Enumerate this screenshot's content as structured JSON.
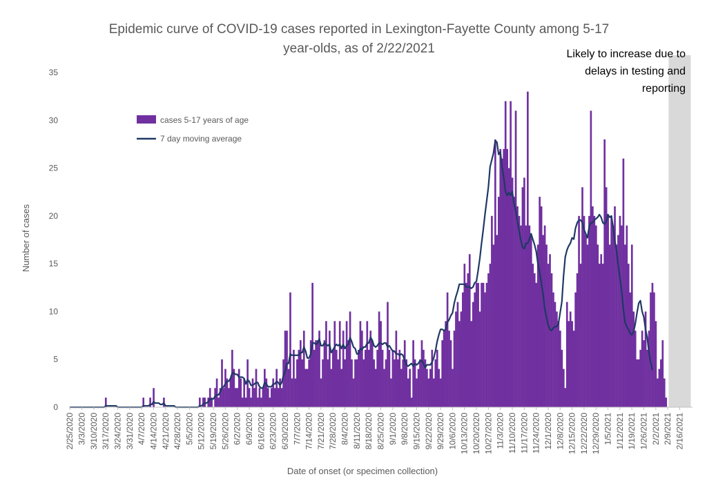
{
  "chart_data": {
    "type": "bar",
    "title_lines": [
      "Epidemic curve of COVID-19 cases reported in Lexington-Fayette County among 5-17",
      "year-olds, as of 2/22/2021"
    ],
    "xlabel": "Date of onset (or specimen collection)",
    "ylabel": "Number of cases",
    "ylim": [
      0,
      35
    ],
    "yticks": [
      0,
      5,
      10,
      15,
      20,
      25,
      30,
      35
    ],
    "grid": false,
    "legend_position": "top-left",
    "start_date": "2/25/2020",
    "end_date": "2/23/2021",
    "xtick_labels": [
      "2/25/2020",
      "3/3/2020",
      "3/10/2020",
      "3/17/2020",
      "3/24/2020",
      "3/31/2020",
      "4/7/2020",
      "4/14/2020",
      "4/21/2020",
      "4/28/2020",
      "5/5/2020",
      "5/12/2020",
      "5/19/2020",
      "5/26/2020",
      "6/2/2020",
      "6/9/2020",
      "6/16/2020",
      "6/23/2020",
      "6/30/2020",
      "7/7/2020",
      "7/14/2020",
      "7/21/2020",
      "7/28/2020",
      "8/4/2020",
      "8/11/2020",
      "8/18/2020",
      "8/25/2020",
      "9/1/2020",
      "9/8/2020",
      "9/15/2020",
      "9/22/2020",
      "9/29/2020",
      "10/6/2020",
      "10/13/2020",
      "10/20/2020",
      "10/27/2020",
      "11/3/2020",
      "11/10/2020",
      "11/17/2020",
      "11/24/2020",
      "12/1/2020",
      "12/8/2020",
      "12/15/2020",
      "12/22/2020",
      "12/29/2020",
      "1/5/2021",
      "1/12/2021",
      "1/19/2021",
      "1/26/2021",
      "2/2/2021",
      "2/9/2021",
      "2/16/2021"
    ],
    "series": [
      {
        "name": "cases 5-17 years of age",
        "type": "bar",
        "color": "#7030a0",
        "values": [
          0,
          0,
          0,
          0,
          0,
          0,
          0,
          0,
          0,
          0,
          0,
          0,
          0,
          0,
          0,
          0,
          0,
          0,
          0,
          0,
          0,
          1,
          0,
          0,
          0,
          0,
          0,
          0,
          0,
          0,
          0,
          0,
          0,
          0,
          0,
          0,
          0,
          0,
          0,
          0,
          0,
          0,
          0,
          1,
          0,
          0,
          0,
          1,
          0,
          2,
          0,
          0,
          0,
          0,
          0,
          1,
          0,
          0,
          0,
          0,
          0,
          0,
          0,
          0,
          0,
          0,
          0,
          0,
          0,
          0,
          0,
          0,
          0,
          0,
          0,
          0,
          1,
          0,
          1,
          1,
          0,
          1,
          2,
          1,
          0,
          2,
          3,
          1,
          2,
          5,
          2,
          4,
          3,
          2,
          3,
          6,
          4,
          2,
          2,
          4,
          3,
          1,
          3,
          1,
          5,
          2,
          1,
          3,
          2,
          4,
          1,
          2,
          1,
          2,
          4,
          3,
          2,
          1,
          2,
          3,
          2,
          4,
          2,
          3,
          2,
          5,
          8,
          8,
          4,
          12,
          3,
          6,
          3,
          5,
          6,
          7,
          5,
          8,
          4,
          4,
          5,
          7,
          13,
          6,
          7,
          7,
          8,
          3,
          5,
          7,
          9,
          5,
          8,
          4,
          6,
          9,
          6,
          5,
          9,
          4,
          8,
          5,
          9,
          7,
          10,
          5,
          3,
          5,
          5,
          6,
          9,
          8,
          5,
          6,
          9,
          6,
          8,
          7,
          5,
          4,
          6,
          10,
          9,
          6,
          4,
          5,
          11,
          6,
          3,
          6,
          5,
          8,
          5,
          6,
          4,
          5,
          7,
          5,
          3,
          4,
          1,
          7,
          5,
          3,
          4,
          5,
          7,
          6,
          5,
          4,
          3,
          4,
          6,
          3,
          5,
          6,
          4,
          3,
          7,
          8,
          9,
          12,
          8,
          7,
          4,
          8,
          10,
          11,
          9,
          10,
          12,
          15,
          13,
          14,
          16,
          9,
          11,
          12,
          13,
          13,
          10,
          13,
          13,
          12,
          13,
          14,
          15,
          20,
          17,
          28,
          18,
          22,
          27,
          26,
          27,
          32,
          27,
          25,
          32,
          24,
          22,
          31,
          21,
          20,
          19,
          23,
          24,
          19,
          33,
          19,
          18,
          15,
          14,
          13,
          17,
          22,
          21,
          18,
          19,
          17,
          15,
          16,
          14,
          12,
          11,
          10,
          9,
          8,
          6,
          4,
          2,
          11,
          9,
          10,
          9,
          8,
          12,
          14,
          20,
          15,
          23,
          20,
          18,
          17,
          20,
          31,
          21,
          20,
          19,
          17,
          15,
          16,
          15,
          28,
          23,
          20,
          17,
          20,
          19,
          21,
          17,
          18,
          20,
          19,
          26,
          17,
          19,
          15,
          12,
          17,
          10,
          8,
          5,
          5,
          6,
          8,
          7,
          10,
          6,
          8,
          12,
          13,
          12,
          9,
          3,
          4,
          5,
          7,
          3,
          1
        ]
      },
      {
        "name": "7 day moving average",
        "type": "line",
        "color": "#1f3864",
        "values": [
          0,
          0,
          0,
          0,
          0,
          0,
          0,
          0,
          0,
          0,
          0,
          0,
          0,
          0,
          0,
          0,
          0,
          0,
          0,
          0,
          0,
          0.14,
          0.14,
          0.14,
          0.14,
          0.14,
          0.14,
          0.14,
          0,
          0,
          0,
          0,
          0,
          0,
          0,
          0,
          0,
          0,
          0,
          0,
          0,
          0,
          0,
          0.14,
          0.14,
          0.14,
          0.14,
          0.29,
          0.29,
          0.57,
          0.43,
          0.43,
          0.43,
          0.29,
          0.29,
          0.43,
          0.14,
          0.14,
          0.14,
          0.14,
          0.14,
          0.14,
          0,
          0,
          0,
          0,
          0,
          0,
          0,
          0,
          0,
          0,
          0,
          0,
          0,
          0,
          0.14,
          0.14,
          0.29,
          0.43,
          0.43,
          0.57,
          0.86,
          0.86,
          0.86,
          1.14,
          1.29,
          1.29,
          1.57,
          2,
          2.14,
          2.43,
          2.71,
          2.71,
          3,
          3.57,
          3.57,
          3.43,
          3.43,
          3.14,
          3.14,
          3.14,
          3,
          2.43,
          2.86,
          2.71,
          2.29,
          2.29,
          2.43,
          2.57,
          2.57,
          2.14,
          2,
          2,
          2.57,
          2.43,
          2.14,
          2.14,
          2.14,
          2.43,
          2.43,
          2.71,
          2.57,
          2.29,
          2.57,
          3.29,
          3.71,
          4.57,
          4.57,
          5.57,
          5.43,
          5.43,
          5.43,
          5.43,
          5.43,
          5.71,
          5.71,
          6.29,
          5.86,
          5.14,
          5.14,
          5.57,
          6.71,
          6.71,
          6.57,
          6.71,
          7.14,
          6.43,
          6.43,
          6.71,
          6.57,
          6.43,
          6.57,
          5.71,
          6,
          6.29,
          6.57,
          6.43,
          6.57,
          6.14,
          6.57,
          6.14,
          6.43,
          6.57,
          7.29,
          6.86,
          6.29,
          6.14,
          5.57,
          5.57,
          6.14,
          6,
          6.29,
          6.29,
          6.71,
          6.71,
          7.29,
          7,
          6.43,
          6.29,
          6.43,
          6.71,
          6.71,
          6.57,
          6.71,
          6.71,
          6.29,
          6.43,
          6.14,
          5.86,
          5.86,
          5.57,
          5.57,
          5.43,
          5.57,
          5.43,
          4.86,
          4.43,
          4.29,
          4.43,
          4.57,
          4.29,
          4.57,
          4.43,
          4.57,
          4.86,
          4.86,
          4.57,
          4.14,
          4.43,
          4.43,
          4.43,
          4.71,
          5.14,
          5.86,
          6.86,
          7.57,
          8.14,
          8.14,
          8,
          8.14,
          8.86,
          9.14,
          9.57,
          9.86,
          10.86,
          11.57,
          12.14,
          12.86,
          12.86,
          12.86,
          12.86,
          12.57,
          12.57,
          12.57,
          12.43,
          12.57,
          13,
          13.14,
          14.29,
          15.57,
          17.14,
          18.57,
          20.14,
          21.57,
          23,
          25.14,
          25.86,
          26.57,
          27.86,
          27.71,
          26.43,
          26.71,
          25.14,
          24,
          22.57,
          22.14,
          22.43,
          22.14,
          22.57,
          21.29,
          20.57,
          19.43,
          18.43,
          17.43,
          16.71,
          16.57,
          17.14,
          17.14,
          17.57,
          18.14,
          17.57,
          17,
          16.29,
          15,
          14.14,
          13,
          11.86,
          10.29,
          9.43,
          8.57,
          8.14,
          8,
          8.29,
          8.43,
          8.43,
          8.71,
          9.86,
          11,
          13.71,
          15.71,
          16.43,
          16.86,
          17.14,
          17.71,
          17.57,
          18.71,
          19.29,
          19.57,
          19.57,
          19.29,
          18.57,
          18.14,
          17.71,
          18.86,
          19.29,
          19.29,
          19.57,
          19.71,
          19.86,
          20.14,
          19.86,
          19.29,
          19.14,
          19.43,
          20.14,
          19.86,
          20,
          18.86,
          17.43,
          16.43,
          14.86,
          13.57,
          12.14,
          10.29,
          8.86,
          8.43,
          8.14,
          7.71,
          7.57,
          7.86,
          8.71,
          9.86,
          10.86,
          11.14,
          10,
          9.43,
          8.14,
          7.29,
          5.71,
          4.71,
          3.86
        ]
      }
    ],
    "annotations": [
      {
        "text": "Likely to increase due to delays in testing and reporting",
        "lines": [
          "Likely to increase due to",
          "delays in testing and",
          "reporting"
        ],
        "shaded_region": [
          "2/10/2021",
          "2/23/2021"
        ],
        "shade_color": "#d9d9d9"
      }
    ],
    "colors": {
      "bars": "#7030a0",
      "line": "#1f3864",
      "shade": "#d9d9d9",
      "text": "#595959",
      "axis": "#bfbfbf"
    }
  }
}
